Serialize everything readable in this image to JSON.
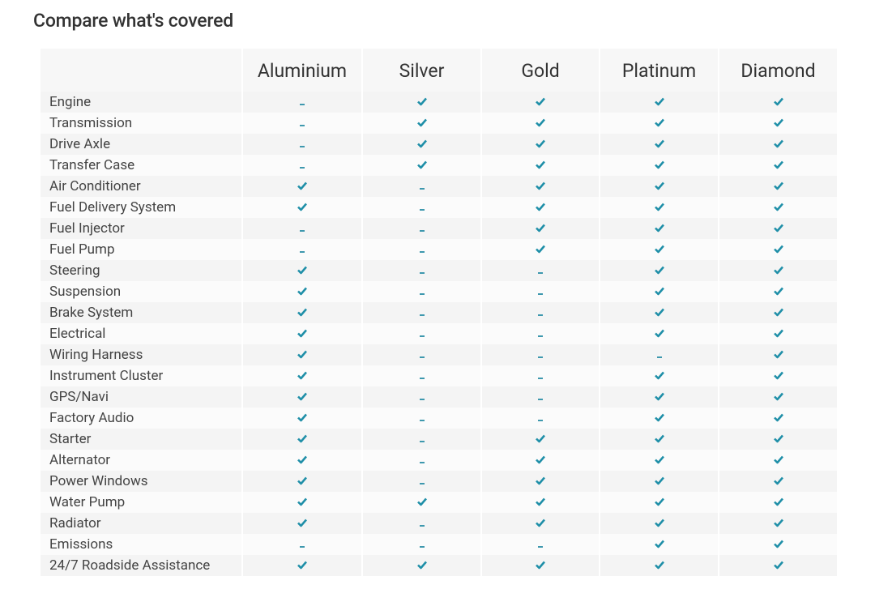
{
  "header": {
    "title": "Compare what's covered"
  },
  "table": {
    "columns": [
      "Aluminium",
      "Silver",
      "Gold",
      "Platinum",
      "Diamond"
    ],
    "rows": [
      {
        "label": "Engine",
        "covered": [
          false,
          true,
          true,
          true,
          true
        ]
      },
      {
        "label": "Transmission",
        "covered": [
          false,
          true,
          true,
          true,
          true
        ]
      },
      {
        "label": "Drive Axle",
        "covered": [
          false,
          true,
          true,
          true,
          true
        ]
      },
      {
        "label": "Transfer Case",
        "covered": [
          false,
          true,
          true,
          true,
          true
        ]
      },
      {
        "label": "Air Conditioner",
        "covered": [
          true,
          false,
          true,
          true,
          true
        ]
      },
      {
        "label": "Fuel Delivery System",
        "covered": [
          true,
          false,
          true,
          true,
          true
        ]
      },
      {
        "label": "Fuel Injector",
        "covered": [
          false,
          false,
          true,
          true,
          true
        ]
      },
      {
        "label": "Fuel Pump",
        "covered": [
          false,
          false,
          true,
          true,
          true
        ]
      },
      {
        "label": "Steering",
        "covered": [
          true,
          false,
          false,
          true,
          true
        ]
      },
      {
        "label": "Suspension",
        "covered": [
          true,
          false,
          false,
          true,
          true
        ]
      },
      {
        "label": "Brake System",
        "covered": [
          true,
          false,
          false,
          true,
          true
        ]
      },
      {
        "label": "Electrical",
        "covered": [
          true,
          false,
          false,
          true,
          true
        ]
      },
      {
        "label": "Wiring Harness",
        "covered": [
          true,
          false,
          false,
          false,
          true
        ]
      },
      {
        "label": "Instrument Cluster",
        "covered": [
          true,
          false,
          false,
          true,
          true
        ]
      },
      {
        "label": "GPS/Navi",
        "covered": [
          true,
          false,
          false,
          true,
          true
        ]
      },
      {
        "label": "Factory Audio",
        "covered": [
          true,
          false,
          false,
          true,
          true
        ]
      },
      {
        "label": "Starter",
        "covered": [
          true,
          false,
          true,
          true,
          true
        ]
      },
      {
        "label": "Alternator",
        "covered": [
          true,
          false,
          true,
          true,
          true
        ]
      },
      {
        "label": "Power Windows",
        "covered": [
          true,
          false,
          true,
          true,
          true
        ]
      },
      {
        "label": "Water Pump",
        "covered": [
          true,
          true,
          true,
          true,
          true
        ]
      },
      {
        "label": "Radiator",
        "covered": [
          true,
          false,
          true,
          true,
          true
        ]
      },
      {
        "label": "Emissions",
        "covered": [
          false,
          false,
          false,
          true,
          true
        ]
      },
      {
        "label": "24/7 Roadside Assistance",
        "covered": [
          true,
          true,
          true,
          true,
          true
        ]
      }
    ]
  }
}
